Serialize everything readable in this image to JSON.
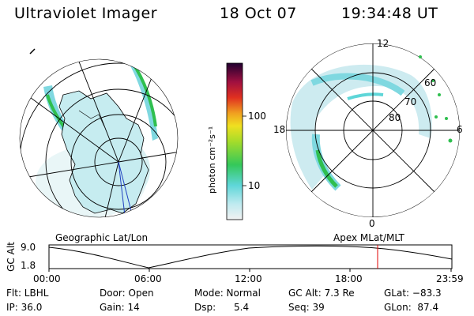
{
  "header": {
    "instrument": "Ultraviolet Imager",
    "date": "18 Oct 07",
    "time": "19:34:48 UT"
  },
  "colorbar": {
    "unit_label": "photon cm⁻²s⁻¹",
    "ticks": [
      "100",
      "10"
    ]
  },
  "captions": {
    "left_map": "Geographic Lat/Lon",
    "right_map": "Apex  MLat/MLT"
  },
  "polar": {
    "mlt_labels": [
      "12",
      "18",
      "6",
      "0"
    ],
    "lat_labels": [
      "60",
      "70",
      "80"
    ]
  },
  "timeline": {
    "y_title": "GC Alt",
    "y_ticks": [
      "9.0",
      "1.8"
    ],
    "x_ticks": [
      "00:00",
      "06:00",
      "12:00",
      "18:00",
      "23:59"
    ],
    "current_marker_time": "19:34:48"
  },
  "status": {
    "flt": "Flt: LBHL",
    "ip": "IP: 36.0",
    "door": "Door: Open",
    "gain": "Gain: 14",
    "mode": "Mode: Normal",
    "dsp": "Dsp:      5.4",
    "gc_alt": "GC Alt: 7.3 Re",
    "seq": "Seq: 39",
    "glat": "GLat: −83.3",
    "glon": "GLon:  87.4"
  },
  "colors": {
    "accent_marker": "#e00000",
    "grid": "#000000",
    "aurora_cyan": "#7fd8e0",
    "aurora_green": "#2fbf4f"
  }
}
